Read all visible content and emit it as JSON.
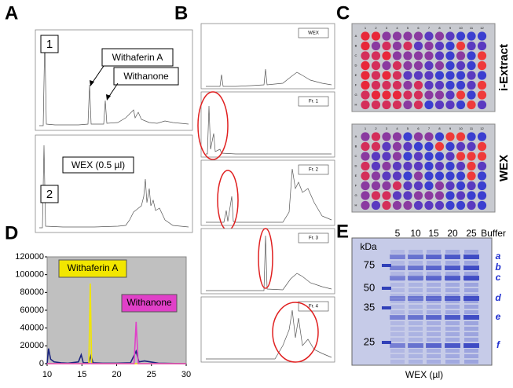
{
  "panels": {
    "A": {
      "label": "A",
      "insets": [
        "1",
        "2"
      ],
      "annotations": [
        "Withaferin A",
        "Withanone",
        "WEX (0.5 µl)"
      ]
    },
    "B": {
      "label": "B",
      "traces": [
        "WEX",
        "Fr. 1",
        "Fr. 2",
        "Fr. 3",
        "Fr. 4"
      ]
    },
    "C": {
      "label": "C",
      "plates": [
        "i-Extract",
        "WEX"
      ],
      "cols": [
        "1",
        "2",
        "3",
        "4",
        "5",
        "6",
        "7",
        "8",
        "9",
        "10",
        "11",
        "12"
      ],
      "rows": [
        "A",
        "B",
        "C",
        "D",
        "E",
        "F",
        "G",
        "H"
      ]
    },
    "D": {
      "label": "D"
    },
    "E": {
      "label": "E",
      "lanes": [
        "5",
        "10",
        "15",
        "20",
        "25",
        "Buffer"
      ],
      "unit": "kDa",
      "markers": [
        "75",
        "50",
        "35",
        "25"
      ],
      "bands": [
        "a",
        "b",
        "c",
        "d",
        "e",
        "f"
      ],
      "xlabel": "WEX (µl)"
    }
  },
  "chart_data": {
    "type": "line",
    "xlim": [
      10,
      30
    ],
    "xticks": [
      10,
      15,
      20,
      25,
      30
    ],
    "ylim": [
      0,
      120000
    ],
    "yticks": [
      0,
      20000,
      40000,
      60000,
      80000,
      100000,
      120000
    ],
    "grid": false,
    "series": [
      {
        "color": "#1a237e",
        "x": [
          10,
          10.2,
          10.5,
          11,
          12,
          13,
          14.5,
          14.9,
          15.2,
          16,
          16.3,
          16.6,
          18,
          20,
          22,
          22.8,
          23.2,
          24,
          26,
          30
        ],
        "values": [
          0,
          17000,
          5000,
          2000,
          1000,
          500,
          2000,
          10000,
          1000,
          1000,
          9000,
          1000,
          500,
          500,
          1000,
          14000,
          2000,
          3000,
          500,
          0
        ]
      },
      {
        "name": "Withaferin A",
        "color": "#f2e600",
        "x": [
          10,
          16,
          16.2,
          16.4,
          30
        ],
        "values": [
          0,
          0,
          90000,
          0,
          0
        ]
      },
      {
        "name": "Withanone",
        "color": "#e040c8",
        "x": [
          10,
          22.5,
          22.8,
          23.1,
          30
        ],
        "values": [
          0,
          0,
          47000,
          0,
          0
        ]
      }
    ]
  }
}
